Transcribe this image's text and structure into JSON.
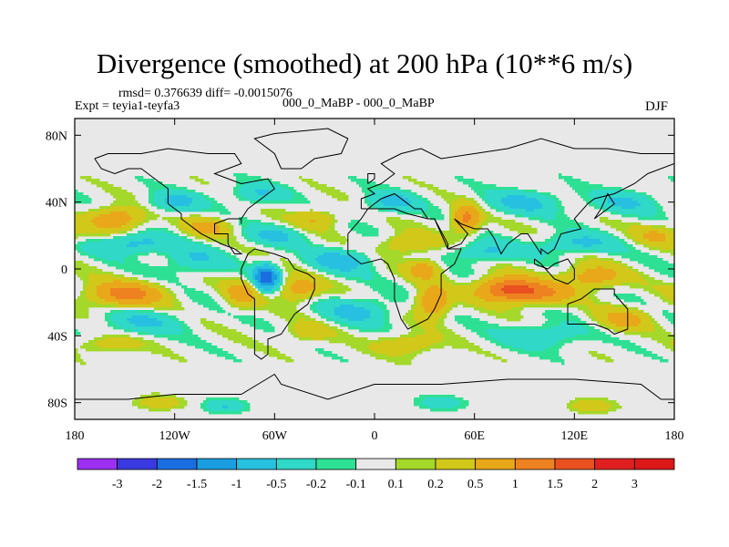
{
  "chart_data": {
    "type": "heatmap",
    "title": "Divergence (smoothed) at 200 hPa (10**6 m/s)",
    "stats_line": "rmsd= 0.376639  diff= -0.0015076",
    "rmsd": 0.376639,
    "diff": -0.0015076,
    "experiment_label": "Expt = teyia1-teyfa3",
    "case_label": "000_0_MaBP - 000_0_MaBP",
    "season": "DJF",
    "x_range": [
      -180,
      180
    ],
    "y_range": [
      -90,
      90
    ],
    "x_ticks": [
      {
        "value": -180,
        "label": "180"
      },
      {
        "value": -120,
        "label": "120W"
      },
      {
        "value": -60,
        "label": "60W"
      },
      {
        "value": 0,
        "label": "0"
      },
      {
        "value": 60,
        "label": "60E"
      },
      {
        "value": 120,
        "label": "120E"
      },
      {
        "value": 180,
        "label": "180"
      }
    ],
    "y_ticks": [
      {
        "value": 80,
        "label": "80N"
      },
      {
        "value": 40,
        "label": "40N"
      },
      {
        "value": 0,
        "label": "0"
      },
      {
        "value": -40,
        "label": "40S"
      },
      {
        "value": -80,
        "label": "80S"
      }
    ],
    "colorbar": {
      "levels": [
        "-3",
        "-2",
        "-1.5",
        "-1",
        "-0.5",
        "-0.2",
        "-0.1",
        "0.1",
        "0.2",
        "0.5",
        "1",
        "1.5",
        "2",
        "3"
      ],
      "colors": [
        "#9b30f0",
        "#3a3ae0",
        "#1a6ee0",
        "#1a9ee0",
        "#27c0e0",
        "#30d8c8",
        "#2ee094",
        "#e8e8e8",
        "#a4d82a",
        "#d2c81a",
        "#e8a81a",
        "#ee8220",
        "#e85020",
        "#e02020",
        "#dd1818"
      ]
    },
    "features": [
      {
        "lon": -155,
        "lat": 30,
        "amp": 0.9,
        "w": 16,
        "h": 7
      },
      {
        "lon": -145,
        "lat": 15,
        "amp": -0.7,
        "w": 22,
        "h": 6
      },
      {
        "lon": -150,
        "lat": -15,
        "amp": 1.2,
        "w": 22,
        "h": 7
      },
      {
        "lon": -140,
        "lat": -32,
        "amp": -0.5,
        "w": 24,
        "h": 7
      },
      {
        "lon": -160,
        "lat": -45,
        "amp": 0.4,
        "w": 18,
        "h": 5
      },
      {
        "lon": -110,
        "lat": 5,
        "amp": -0.5,
        "w": 18,
        "h": 8
      },
      {
        "lon": -100,
        "lat": 25,
        "amp": 0.6,
        "w": 14,
        "h": 6
      },
      {
        "lon": -120,
        "lat": 40,
        "amp": -0.6,
        "w": 16,
        "h": 6
      },
      {
        "lon": -65,
        "lat": -5,
        "amp": -1.9,
        "w": 7,
        "h": 7
      },
      {
        "lon": -80,
        "lat": -15,
        "amp": 0.7,
        "w": 10,
        "h": 8
      },
      {
        "lon": -45,
        "lat": -12,
        "amp": 0.8,
        "w": 12,
        "h": 7
      },
      {
        "lon": -60,
        "lat": 20,
        "amp": -0.5,
        "w": 18,
        "h": 6
      },
      {
        "lon": -70,
        "lat": 45,
        "amp": -0.5,
        "w": 16,
        "h": 6
      },
      {
        "lon": -35,
        "lat": 30,
        "amp": 0.5,
        "w": 14,
        "h": 6
      },
      {
        "lon": -20,
        "lat": 5,
        "amp": -0.7,
        "w": 18,
        "h": 7
      },
      {
        "lon": -10,
        "lat": -25,
        "amp": -0.6,
        "w": 20,
        "h": 8
      },
      {
        "lon": -40,
        "lat": -38,
        "amp": 0.4,
        "w": 14,
        "h": 6
      },
      {
        "lon": 20,
        "lat": 15,
        "amp": 0.6,
        "w": 16,
        "h": 6
      },
      {
        "lon": 30,
        "lat": 0,
        "amp": 0.7,
        "w": 10,
        "h": 6
      },
      {
        "lon": 35,
        "lat": -20,
        "amp": 1.0,
        "w": 10,
        "h": 9
      },
      {
        "lon": 10,
        "lat": 40,
        "amp": -0.6,
        "w": 16,
        "h": 6
      },
      {
        "lon": 55,
        "lat": 30,
        "amp": 1.2,
        "w": 8,
        "h": 8
      },
      {
        "lon": 65,
        "lat": 10,
        "amp": -0.6,
        "w": 18,
        "h": 6
      },
      {
        "lon": 80,
        "lat": -12,
        "amp": 1.6,
        "w": 18,
        "h": 7
      },
      {
        "lon": 100,
        "lat": -15,
        "amp": 0.9,
        "w": 18,
        "h": 6
      },
      {
        "lon": 130,
        "lat": -5,
        "amp": 0.8,
        "w": 18,
        "h": 7
      },
      {
        "lon": 150,
        "lat": -30,
        "amp": 0.6,
        "w": 16,
        "h": 7
      },
      {
        "lon": 120,
        "lat": 15,
        "amp": -0.6,
        "w": 22,
        "h": 6
      },
      {
        "lon": 150,
        "lat": 40,
        "amp": -0.5,
        "w": 20,
        "h": 7
      },
      {
        "lon": 170,
        "lat": 20,
        "amp": 0.5,
        "w": 14,
        "h": 6
      },
      {
        "lon": 90,
        "lat": 40,
        "amp": -0.6,
        "w": 22,
        "h": 7
      },
      {
        "lon": 100,
        "lat": -40,
        "amp": -0.5,
        "w": 24,
        "h": 7
      },
      {
        "lon": 20,
        "lat": -45,
        "amp": 0.5,
        "w": 18,
        "h": 6
      },
      {
        "lon": -130,
        "lat": -80,
        "amp": 0.4,
        "w": 14,
        "h": 4
      },
      {
        "lon": -90,
        "lat": -82,
        "amp": -0.5,
        "w": 12,
        "h": 4
      },
      {
        "lon": 40,
        "lat": -80,
        "amp": -0.4,
        "w": 14,
        "h": 4
      },
      {
        "lon": 130,
        "lat": -82,
        "amp": 0.4,
        "w": 14,
        "h": 4
      }
    ]
  }
}
